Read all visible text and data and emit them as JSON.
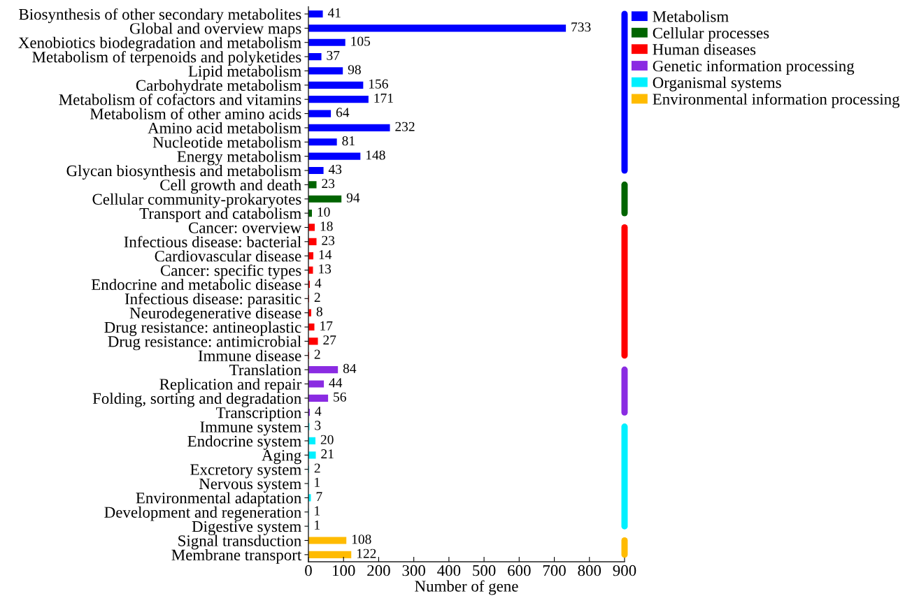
{
  "chart_data": {
    "type": "bar",
    "orientation": "horizontal",
    "xlabel": "Number of gene",
    "categories": [
      "Biosynthesis of other secondary metabolites",
      "Global and overview maps",
      "Xenobiotics biodegradation and metabolism",
      "Metabolism of terpenoids and polyketides",
      "Lipid metabolism",
      "Carbohydrate metabolism",
      "Metabolism of cofactors and vitamins",
      "Metabolism of other amino acids",
      "Amino acid metabolism",
      "Nucleotide metabolism",
      "Energy metabolism",
      "Glycan biosynthesis and metabolism",
      "Cell growth and death",
      "Cellular community-prokaryotes",
      "Transport and catabolism",
      "Cancer: overview",
      "Infectious disease: bacterial",
      "Cardiovascular disease",
      "Cancer: specific types",
      "Endocrine and metabolic disease",
      "Infectious disease: parasitic",
      "Neurodegenerative disease",
      "Drug resistance: antineoplastic",
      "Drug resistance: antimicrobial",
      "Immune disease",
      "Translation",
      "Replication and repair",
      "Folding, sorting and degradation",
      "Transcription",
      "Immune system",
      "Endocrine system",
      "Aging",
      "Excretory system",
      "Nervous system",
      "Environmental adaptation",
      "Development and regeneration",
      "Digestive system",
      "Signal transduction",
      "Membrane transport"
    ],
    "series": [
      {
        "name": "Metabolism",
        "color": "#0000ff",
        "values": [
          41,
          733,
          105,
          37,
          98,
          156,
          171,
          64,
          232,
          81,
          148,
          43,
          null,
          null,
          null,
          null,
          null,
          null,
          null,
          null,
          null,
          null,
          null,
          null,
          null,
          null,
          null,
          null,
          null,
          null,
          null,
          null,
          null,
          null,
          null,
          null,
          null,
          null,
          null
        ]
      },
      {
        "name": "Cellular processes",
        "color": "#006400",
        "values": [
          null,
          null,
          null,
          null,
          null,
          null,
          null,
          null,
          null,
          null,
          null,
          null,
          23,
          94,
          10,
          null,
          null,
          null,
          null,
          null,
          null,
          null,
          null,
          null,
          null,
          null,
          null,
          null,
          null,
          null,
          null,
          null,
          null,
          null,
          null,
          null,
          null,
          null,
          null
        ]
      },
      {
        "name": "Human diseases",
        "color": "#ff0000",
        "values": [
          null,
          null,
          null,
          null,
          null,
          null,
          null,
          null,
          null,
          null,
          null,
          null,
          null,
          null,
          null,
          18,
          23,
          14,
          13,
          4,
          2,
          8,
          17,
          27,
          2,
          null,
          null,
          null,
          null,
          null,
          null,
          null,
          null,
          null,
          null,
          null,
          null,
          null,
          null
        ]
      },
      {
        "name": "Genetic information processing",
        "color": "#8a2be2",
        "values": [
          null,
          null,
          null,
          null,
          null,
          null,
          null,
          null,
          null,
          null,
          null,
          null,
          null,
          null,
          null,
          null,
          null,
          null,
          null,
          null,
          null,
          null,
          null,
          null,
          null,
          84,
          44,
          56,
          4,
          null,
          null,
          null,
          null,
          null,
          null,
          null,
          null,
          null,
          null
        ]
      },
      {
        "name": "Organismal systems",
        "color": "#00f0ff",
        "values": [
          null,
          null,
          null,
          null,
          null,
          null,
          null,
          null,
          null,
          null,
          null,
          null,
          null,
          null,
          null,
          null,
          null,
          null,
          null,
          null,
          null,
          null,
          null,
          null,
          null,
          null,
          null,
          null,
          null,
          3,
          20,
          21,
          2,
          1,
          7,
          1,
          1,
          null,
          null
        ]
      },
      {
        "name": "Environmental information processing",
        "color": "#ffbb00",
        "values": [
          null,
          null,
          null,
          null,
          null,
          null,
          null,
          null,
          null,
          null,
          null,
          null,
          null,
          null,
          null,
          null,
          null,
          null,
          null,
          null,
          null,
          null,
          null,
          null,
          null,
          null,
          null,
          null,
          null,
          null,
          null,
          null,
          null,
          null,
          null,
          null,
          null,
          108,
          122
        ]
      }
    ],
    "xlim": [
      0,
      900
    ],
    "xticks": [
      0,
      100,
      200,
      300,
      400,
      500,
      600,
      700,
      800,
      900
    ],
    "data_labels": true,
    "legend": "top right",
    "grid": false
  }
}
